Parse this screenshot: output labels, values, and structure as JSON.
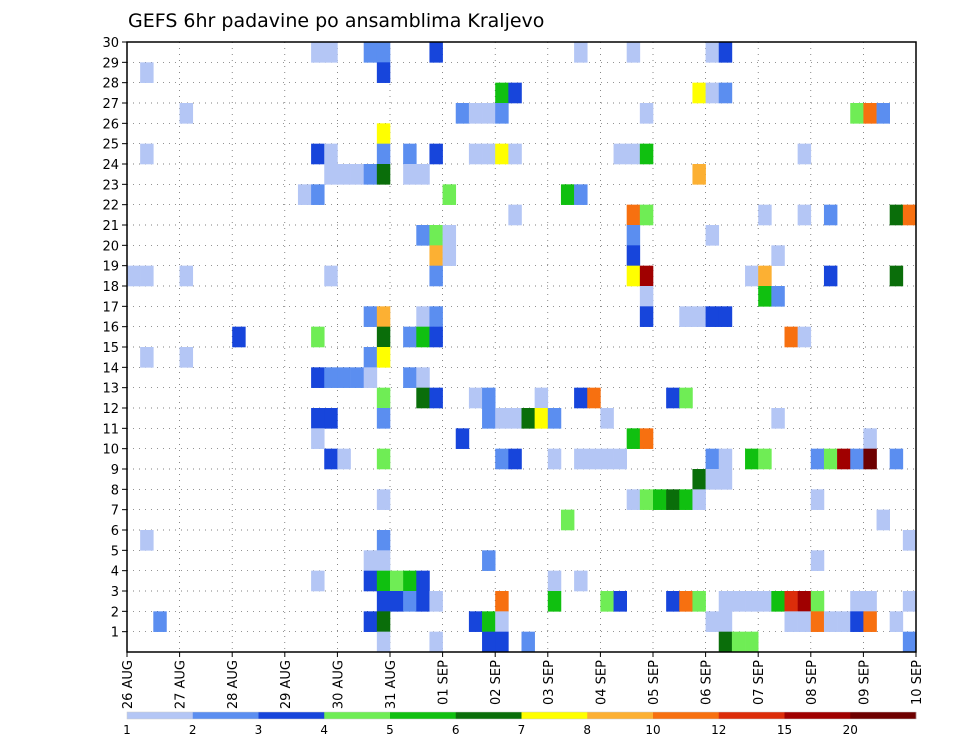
{
  "chart_data": {
    "type": "heatmap",
    "title": "GEFS 6hr padavine po ansamblima Kraljevo",
    "xlabel": "",
    "ylabel": "",
    "x_tick_labels": [
      "26 AUG",
      "27 AUG",
      "28 AUG",
      "29 AUG",
      "30 AUG",
      "31 AUG",
      "01 SEP",
      "02 SEP",
      "03 SEP",
      "04 SEP",
      "05 SEP",
      "06 SEP",
      "07 SEP",
      "08 SEP",
      "09 SEP",
      "10 SEP"
    ],
    "y_tick_labels": [
      "1",
      "2",
      "3",
      "4",
      "5",
      "6",
      "7",
      "8",
      "9",
      "10",
      "11",
      "12",
      "13",
      "14",
      "15",
      "16",
      "17",
      "18",
      "19",
      "20",
      "21",
      "22",
      "23",
      "24",
      "25",
      "26",
      "27",
      "28",
      "29",
      "30"
    ],
    "steps_per_day": 4,
    "n_steps": 60,
    "n_members": 30,
    "grid": true,
    "legend": {
      "placement": "bottom",
      "labels": [
        "1",
        "2",
        "3",
        "4",
        "5",
        "6",
        "7",
        "8",
        "10",
        "12",
        "15",
        "20"
      ],
      "colors": [
        "#b4c6f5",
        "#5b8ef0",
        "#1745db",
        "#6fed55",
        "#10c010",
        "#0a6e0a",
        "#ffff00",
        "#fcb033",
        "#f77010",
        "#dc2d0a",
        "#a00000",
        "#6e0000"
      ]
    },
    "cells": [
      [
        30,
        [
          [
            14,
            1
          ],
          [
            15,
            1
          ],
          [
            18,
            2
          ],
          [
            19,
            2
          ],
          [
            23,
            3
          ],
          [
            34,
            1
          ],
          [
            38,
            1
          ],
          [
            44,
            1
          ],
          [
            45,
            3
          ]
        ]
      ],
      [
        29,
        [
          [
            1,
            1
          ],
          [
            19,
            3
          ]
        ]
      ],
      [
        28,
        [
          [
            28,
            5
          ],
          [
            29,
            3
          ],
          [
            43,
            7
          ],
          [
            44,
            1
          ],
          [
            45,
            2
          ]
        ]
      ],
      [
        27,
        [
          [
            4,
            1
          ],
          [
            25,
            2
          ],
          [
            26,
            1
          ],
          [
            27,
            1
          ],
          [
            28,
            2
          ],
          [
            39,
            1
          ],
          [
            55,
            4
          ],
          [
            56,
            9
          ],
          [
            57,
            2
          ]
        ]
      ],
      [
        26,
        [
          [
            19,
            7
          ]
        ]
      ],
      [
        25,
        [
          [
            1,
            1
          ],
          [
            14,
            3
          ],
          [
            15,
            1
          ],
          [
            19,
            2
          ],
          [
            21,
            2
          ],
          [
            23,
            3
          ],
          [
            26,
            1
          ],
          [
            27,
            1
          ],
          [
            28,
            7
          ],
          [
            29,
            1
          ],
          [
            37,
            1
          ],
          [
            38,
            1
          ],
          [
            39,
            5
          ],
          [
            51,
            1
          ]
        ]
      ],
      [
        24,
        [
          [
            15,
            1
          ],
          [
            16,
            1
          ],
          [
            17,
            1
          ],
          [
            18,
            2
          ],
          [
            19,
            6
          ],
          [
            21,
            1
          ],
          [
            22,
            1
          ],
          [
            43,
            8
          ]
        ]
      ],
      [
        23,
        [
          [
            13,
            1
          ],
          [
            14,
            2
          ],
          [
            24,
            4
          ],
          [
            33,
            5
          ],
          [
            34,
            2
          ]
        ]
      ],
      [
        22,
        [
          [
            29,
            1
          ],
          [
            38,
            9
          ],
          [
            39,
            4
          ],
          [
            48,
            1
          ],
          [
            51,
            1
          ],
          [
            53,
            2
          ],
          [
            58,
            6
          ],
          [
            59,
            9
          ]
        ]
      ],
      [
        21,
        [
          [
            22,
            2
          ],
          [
            23,
            4
          ],
          [
            24,
            1
          ],
          [
            38,
            2
          ],
          [
            44,
            1
          ]
        ]
      ],
      [
        20,
        [
          [
            23,
            8
          ],
          [
            24,
            1
          ],
          [
            38,
            3
          ],
          [
            49,
            1
          ]
        ]
      ],
      [
        19,
        [
          [
            0,
            1
          ],
          [
            1,
            1
          ],
          [
            4,
            1
          ],
          [
            15,
            1
          ],
          [
            23,
            2
          ],
          [
            38,
            7
          ],
          [
            39,
            11
          ],
          [
            47,
            1
          ],
          [
            48,
            8
          ],
          [
            53,
            3
          ],
          [
            58,
            6
          ]
        ]
      ],
      [
        18,
        [
          [
            39,
            1
          ],
          [
            48,
            5
          ],
          [
            49,
            2
          ]
        ]
      ],
      [
        17,
        [
          [
            18,
            2
          ],
          [
            19,
            8
          ],
          [
            22,
            1
          ],
          [
            23,
            2
          ],
          [
            39,
            3
          ],
          [
            42,
            1
          ],
          [
            43,
            1
          ],
          [
            44,
            3
          ],
          [
            45,
            3
          ]
        ]
      ],
      [
        16,
        [
          [
            8,
            3
          ],
          [
            14,
            4
          ],
          [
            19,
            6
          ],
          [
            21,
            2
          ],
          [
            22,
            5
          ],
          [
            23,
            3
          ],
          [
            50,
            9
          ],
          [
            51,
            1
          ]
        ]
      ],
      [
        15,
        [
          [
            1,
            1
          ],
          [
            4,
            1
          ],
          [
            18,
            2
          ],
          [
            19,
            7
          ]
        ]
      ],
      [
        14,
        [
          [
            14,
            3
          ],
          [
            15,
            2
          ],
          [
            16,
            2
          ],
          [
            17,
            2
          ],
          [
            18,
            1
          ],
          [
            21,
            2
          ],
          [
            22,
            1
          ]
        ]
      ],
      [
        13,
        [
          [
            19,
            4
          ],
          [
            22,
            6
          ],
          [
            23,
            3
          ],
          [
            26,
            1
          ],
          [
            27,
            2
          ],
          [
            31,
            1
          ],
          [
            34,
            3
          ],
          [
            35,
            9
          ],
          [
            41,
            3
          ],
          [
            42,
            4
          ]
        ]
      ],
      [
        12,
        [
          [
            14,
            3
          ],
          [
            15,
            3
          ],
          [
            19,
            2
          ],
          [
            27,
            2
          ],
          [
            28,
            1
          ],
          [
            29,
            1
          ],
          [
            30,
            6
          ],
          [
            31,
            7
          ],
          [
            32,
            2
          ],
          [
            36,
            1
          ],
          [
            49,
            1
          ]
        ]
      ],
      [
        11,
        [
          [
            14,
            1
          ],
          [
            25,
            3
          ],
          [
            38,
            5
          ],
          [
            39,
            9
          ],
          [
            56,
            1
          ]
        ]
      ],
      [
        10,
        [
          [
            15,
            3
          ],
          [
            16,
            1
          ],
          [
            19,
            4
          ],
          [
            28,
            2
          ],
          [
            29,
            3
          ],
          [
            32,
            1
          ],
          [
            34,
            1
          ],
          [
            35,
            1
          ],
          [
            36,
            1
          ],
          [
            37,
            1
          ],
          [
            44,
            2
          ],
          [
            45,
            1
          ],
          [
            47,
            5
          ],
          [
            48,
            4
          ],
          [
            52,
            2
          ],
          [
            53,
            4
          ],
          [
            54,
            11
          ],
          [
            55,
            2
          ],
          [
            56,
            12
          ],
          [
            58,
            2
          ]
        ]
      ],
      [
        9,
        [
          [
            43,
            6
          ],
          [
            44,
            1
          ],
          [
            45,
            1
          ]
        ]
      ],
      [
        8,
        [
          [
            19,
            1
          ],
          [
            38,
            1
          ],
          [
            39,
            4
          ],
          [
            40,
            5
          ],
          [
            41,
            6
          ],
          [
            42,
            5
          ],
          [
            43,
            1
          ],
          [
            52,
            1
          ]
        ]
      ],
      [
        7,
        [
          [
            33,
            4
          ],
          [
            57,
            1
          ]
        ]
      ],
      [
        6,
        [
          [
            1,
            1
          ],
          [
            19,
            2
          ],
          [
            59,
            1
          ]
        ]
      ],
      [
        5,
        [
          [
            18,
            1
          ],
          [
            19,
            1
          ],
          [
            27,
            2
          ],
          [
            52,
            1
          ]
        ]
      ],
      [
        4,
        [
          [
            14,
            1
          ],
          [
            18,
            3
          ],
          [
            19,
            5
          ],
          [
            20,
            4
          ],
          [
            21,
            5
          ],
          [
            22,
            3
          ],
          [
            32,
            1
          ],
          [
            34,
            1
          ]
        ]
      ],
      [
        3,
        [
          [
            19,
            3
          ],
          [
            20,
            3
          ],
          [
            21,
            2
          ],
          [
            22,
            3
          ],
          [
            23,
            1
          ],
          [
            28,
            9
          ],
          [
            32,
            5
          ],
          [
            36,
            4
          ],
          [
            37,
            3
          ],
          [
            41,
            3
          ],
          [
            42,
            9
          ],
          [
            43,
            4
          ],
          [
            45,
            1
          ],
          [
            46,
            1
          ],
          [
            47,
            1
          ],
          [
            48,
            1
          ],
          [
            49,
            5
          ],
          [
            50,
            10
          ],
          [
            51,
            11
          ],
          [
            52,
            4
          ],
          [
            55,
            1
          ],
          [
            56,
            1
          ],
          [
            59,
            1
          ]
        ]
      ],
      [
        2,
        [
          [
            2,
            2
          ],
          [
            18,
            3
          ],
          [
            19,
            6
          ],
          [
            26,
            3
          ],
          [
            27,
            5
          ],
          [
            28,
            1
          ],
          [
            44,
            1
          ],
          [
            45,
            1
          ],
          [
            50,
            1
          ],
          [
            51,
            1
          ],
          [
            52,
            9
          ],
          [
            53,
            1
          ],
          [
            54,
            1
          ],
          [
            55,
            3
          ],
          [
            56,
            9
          ],
          [
            58,
            1
          ]
        ]
      ],
      [
        1,
        [
          [
            19,
            1
          ],
          [
            23,
            1
          ],
          [
            27,
            3
          ],
          [
            28,
            3
          ],
          [
            30,
            2
          ],
          [
            45,
            6
          ],
          [
            46,
            4
          ],
          [
            47,
            4
          ],
          [
            59,
            2
          ]
        ]
      ]
    ]
  }
}
